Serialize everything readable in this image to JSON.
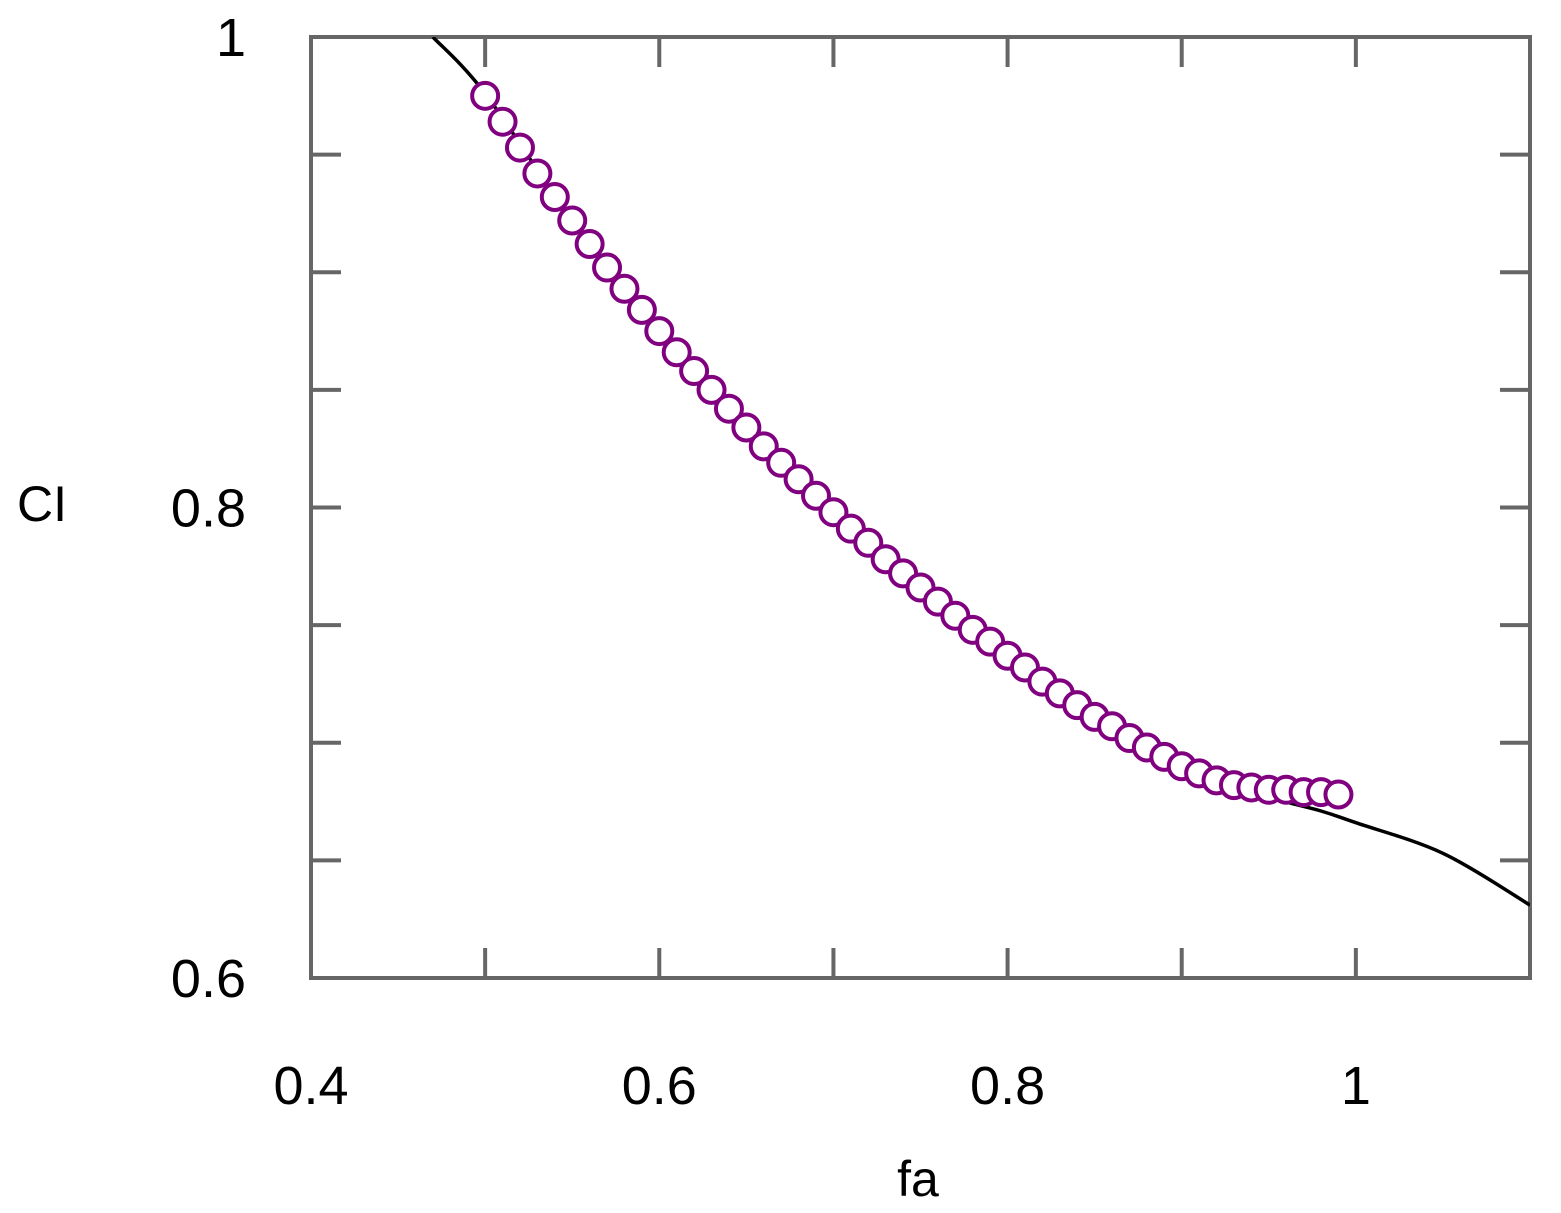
{
  "chart_data": {
    "type": "scatter",
    "title": "",
    "xlabel": "fa",
    "ylabel": "CI",
    "xlim": [
      0.4,
      1.1
    ],
    "ylim": [
      0.6,
      1.0
    ],
    "x_ticks_major": [
      0.4,
      0.6,
      0.8,
      1.0
    ],
    "x_tick_labels": [
      "0.4",
      "0.6",
      "0.8",
      "1"
    ],
    "x_ticks_minor": [
      0.5,
      0.7,
      0.9,
      1.1
    ],
    "y_ticks_major": [
      0.6,
      0.8,
      1.0
    ],
    "y_tick_labels": [
      "0.6",
      "0.8",
      "1"
    ],
    "y_ticks_minor": [
      0.65,
      0.7,
      0.75,
      0.85,
      0.9,
      0.95
    ],
    "grid": false,
    "series": [
      {
        "kind": "markers",
        "marker": "open-circle",
        "color": "#800080",
        "x": [
          0.5,
          0.51,
          0.52,
          0.53,
          0.54,
          0.55,
          0.56,
          0.57,
          0.58,
          0.59,
          0.6,
          0.61,
          0.62,
          0.63,
          0.64,
          0.65,
          0.66,
          0.67,
          0.68,
          0.69,
          0.7,
          0.71,
          0.72,
          0.73,
          0.74,
          0.75,
          0.76,
          0.77,
          0.78,
          0.79,
          0.8,
          0.81,
          0.82,
          0.83,
          0.84,
          0.85,
          0.86,
          0.87,
          0.88,
          0.89,
          0.9,
          0.91,
          0.92,
          0.93,
          0.94,
          0.95,
          0.96,
          0.97,
          0.98,
          0.99
        ],
        "y": [
          0.975,
          0.964,
          0.953,
          0.942,
          0.932,
          0.922,
          0.912,
          0.902,
          0.893,
          0.884,
          0.875,
          0.866,
          0.858,
          0.85,
          0.842,
          0.834,
          0.826,
          0.819,
          0.812,
          0.805,
          0.798,
          0.791,
          0.785,
          0.778,
          0.772,
          0.766,
          0.76,
          0.754,
          0.748,
          0.743,
          0.737,
          0.732,
          0.726,
          0.721,
          0.716,
          0.711,
          0.707,
          0.702,
          0.698,
          0.694,
          0.69,
          0.687,
          0.684,
          0.682,
          0.681,
          0.68,
          0.68,
          0.679,
          0.679,
          0.678
        ]
      },
      {
        "kind": "line",
        "color": "#000000",
        "x": [
          0.47,
          0.5,
          0.55,
          0.6,
          0.65,
          0.7,
          0.75,
          0.8,
          0.85,
          0.9,
          0.95,
          0.98,
          1.0,
          1.05,
          1.1
        ],
        "y": [
          1.0,
          0.976,
          0.922,
          0.875,
          0.834,
          0.798,
          0.766,
          0.737,
          0.711,
          0.69,
          0.677,
          0.671,
          0.666,
          0.653,
          0.631
        ]
      }
    ]
  }
}
